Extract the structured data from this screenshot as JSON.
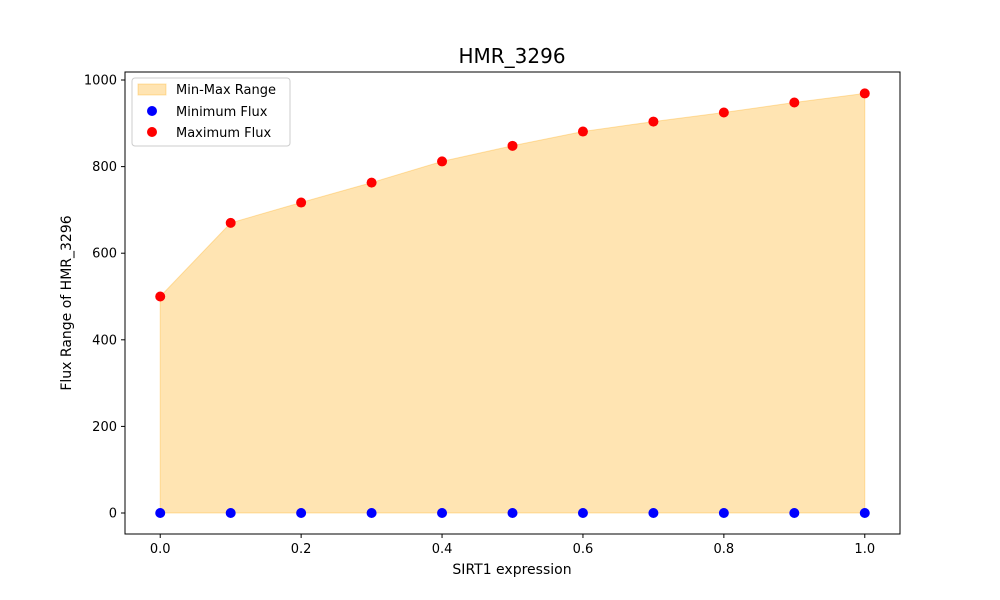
{
  "chart_data": {
    "type": "scatter",
    "title": "HMR_3296",
    "xlabel": "SIRT1 expression",
    "ylabel": "Flux Range of HMR_3296",
    "xlim": [
      -0.05,
      1.05
    ],
    "ylim": [
      -48.5,
      1018.5
    ],
    "xticks": [
      0.0,
      0.2,
      0.4,
      0.6,
      0.8,
      1.0
    ],
    "xtick_labels": [
      "0.0",
      "0.2",
      "0.4",
      "0.6",
      "0.8",
      "1.0"
    ],
    "yticks": [
      0,
      200,
      400,
      600,
      800,
      1000
    ],
    "ytick_labels": [
      "0",
      "200",
      "400",
      "600",
      "800",
      "1000"
    ],
    "grid": false,
    "legend_position": "top-left",
    "x": [
      0.0,
      0.1,
      0.2,
      0.3,
      0.4,
      0.5,
      0.6,
      0.7,
      0.8,
      0.9,
      1.0
    ],
    "series": [
      {
        "name": "Min-Max Range",
        "kind": "fill_between",
        "color": "#ffa500",
        "lower": [
          0,
          0,
          0,
          0,
          0,
          0,
          0,
          0,
          0,
          0,
          0
        ],
        "upper": [
          500,
          670,
          717,
          763,
          812,
          848,
          881,
          904,
          925,
          948,
          969
        ]
      },
      {
        "name": "Minimum Flux",
        "kind": "scatter",
        "color": "#0000ff",
        "values": [
          0,
          0,
          0,
          0,
          0,
          0,
          0,
          0,
          0,
          0,
          0
        ]
      },
      {
        "name": "Maximum Flux",
        "kind": "scatter",
        "color": "#ff0000",
        "values": [
          500,
          670,
          717,
          763,
          812,
          848,
          881,
          904,
          925,
          948,
          969
        ]
      }
    ]
  }
}
